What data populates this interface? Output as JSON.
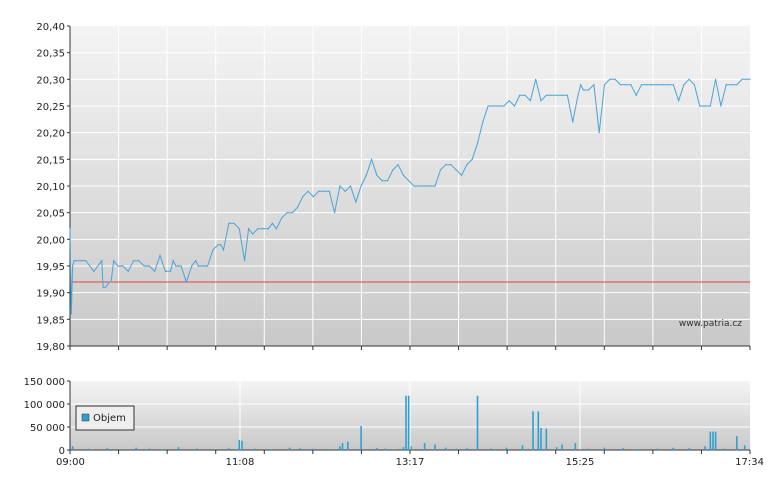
{
  "colors": {
    "background_top": "#f4f4f4",
    "background_bottom": "#c9c9c9",
    "grid": "#ffffff",
    "axis": "#333333",
    "price_line": "#4aa3d8",
    "reference_line": "#e04040",
    "volume_bar": "#2f9fd0",
    "legend_swatch": "#2f9fd0"
  },
  "chart_data": [
    {
      "type": "line",
      "title": "",
      "xlabel": "",
      "ylabel": "",
      "x_tick_labels": [
        "09:00",
        "11:08",
        "13:17",
        "15:25",
        "17:34"
      ],
      "ylim": [
        19.8,
        20.4
      ],
      "y_ticks": [
        19.8,
        19.85,
        19.9,
        19.95,
        20.0,
        20.05,
        20.1,
        20.15,
        20.2,
        20.25,
        20.3,
        20.35,
        20.4
      ],
      "y_tick_labels": [
        "19,80",
        "19,85",
        "19,90",
        "19,95",
        "20,00",
        "20,05",
        "20,10",
        "20,15",
        "20,20",
        "20,25",
        "20,30",
        "20,35",
        "20,40"
      ],
      "reference_value": 19.92,
      "watermark": "www.patria.cz",
      "grid": true,
      "series": [
        {
          "x": [
            "09:00",
            "09:01",
            "09:02",
            "09:03",
            "09:05",
            "09:08",
            "09:12",
            "09:18",
            "09:24",
            "09:25",
            "09:27",
            "09:30",
            "09:31",
            "09:33",
            "09:36",
            "09:40",
            "09:44",
            "09:48",
            "09:52",
            "09:56",
            "10:00",
            "10:04",
            "10:08",
            "10:12",
            "10:16",
            "10:18",
            "10:20",
            "10:24",
            "10:28",
            "10:32",
            "10:35",
            "10:37",
            "10:40",
            "10:44",
            "10:48",
            "10:52",
            "10:54",
            "10:56",
            "11:00",
            "11:04",
            "11:08",
            "11:12",
            "11:15",
            "11:18",
            "11:22",
            "11:26",
            "11:30",
            "11:33",
            "11:36",
            "11:40",
            "11:44",
            "11:48",
            "11:52",
            "11:56",
            "12:00",
            "12:04",
            "12:08",
            "12:12",
            "12:16",
            "12:20",
            "12:24",
            "12:28",
            "12:32",
            "12:36",
            "12:40",
            "12:44",
            "12:48",
            "12:52",
            "12:56",
            "13:00",
            "13:04",
            "13:08",
            "13:12",
            "13:16",
            "13:20",
            "13:24",
            "13:28",
            "13:32",
            "13:36",
            "13:40",
            "13:44",
            "13:48",
            "13:52",
            "13:56",
            "14:00",
            "14:04",
            "14:08",
            "14:12",
            "14:16",
            "14:20",
            "14:24",
            "14:28",
            "14:32",
            "14:36",
            "14:40",
            "14:44",
            "14:48",
            "14:52",
            "14:56",
            "15:00",
            "15:04",
            "15:08",
            "15:12",
            "15:16",
            "15:20",
            "15:24",
            "15:26",
            "15:28",
            "15:32",
            "15:36",
            "15:40",
            "15:44",
            "15:48",
            "15:52",
            "15:56",
            "16:00",
            "16:04",
            "16:08",
            "16:12",
            "16:16",
            "16:20",
            "16:24",
            "16:28",
            "16:32",
            "16:36",
            "16:40",
            "16:44",
            "16:48",
            "16:52",
            "16:56",
            "17:00",
            "17:04",
            "17:08",
            "17:12",
            "17:16",
            "17:20",
            "17:24",
            "17:28",
            "17:34"
          ],
          "y": [
            20.02,
            19.86,
            19.95,
            19.96,
            19.96,
            19.96,
            19.96,
            19.94,
            19.96,
            19.91,
            19.91,
            19.92,
            19.92,
            19.96,
            19.95,
            19.95,
            19.94,
            19.96,
            19.96,
            19.95,
            19.95,
            19.94,
            19.97,
            19.94,
            19.94,
            19.96,
            19.95,
            19.95,
            19.92,
            19.95,
            19.96,
            19.95,
            19.95,
            19.95,
            19.98,
            19.99,
            19.99,
            19.98,
            20.03,
            20.03,
            20.02,
            19.96,
            20.02,
            20.01,
            20.02,
            20.02,
            20.02,
            20.03,
            20.02,
            20.04,
            20.05,
            20.05,
            20.06,
            20.08,
            20.09,
            20.08,
            20.09,
            20.09,
            20.09,
            20.05,
            20.1,
            20.09,
            20.1,
            20.07,
            20.1,
            20.12,
            20.15,
            20.12,
            20.11,
            20.11,
            20.13,
            20.14,
            20.12,
            20.11,
            20.1,
            20.1,
            20.1,
            20.1,
            20.1,
            20.13,
            20.14,
            20.14,
            20.13,
            20.12,
            20.14,
            20.15,
            20.18,
            20.22,
            20.25,
            20.25,
            20.25,
            20.25,
            20.26,
            20.25,
            20.27,
            20.27,
            20.26,
            20.3,
            20.26,
            20.27,
            20.27,
            20.27,
            20.27,
            20.27,
            20.22,
            20.27,
            20.29,
            20.28,
            20.28,
            20.29,
            20.2,
            20.29,
            20.3,
            20.3,
            20.29,
            20.29,
            20.29,
            20.27,
            20.29,
            20.29,
            20.29,
            20.29,
            20.29,
            20.29,
            20.29,
            20.26,
            20.29,
            20.3,
            20.29,
            20.25,
            20.25,
            20.25,
            20.3,
            20.25,
            20.29,
            20.29,
            20.29,
            20.3,
            20.3
          ]
        }
      ]
    },
    {
      "type": "bar",
      "title": "",
      "xlabel": "",
      "ylabel": "",
      "x_tick_labels": [
        "09:00",
        "11:08",
        "13:17",
        "15:25",
        "17:34"
      ],
      "ylim": [
        0,
        150000
      ],
      "y_ticks": [
        0,
        50000,
        100000,
        150000
      ],
      "y_tick_labels": [
        "0",
        "50 000",
        "100 000",
        "150 000"
      ],
      "legend": {
        "label": "Objem",
        "position": "top-left"
      },
      "grid": true,
      "series": [
        {
          "name": "Objem",
          "x": [
            "09:02",
            "09:14",
            "09:28",
            "09:40",
            "09:50",
            "10:00",
            "10:10",
            "10:22",
            "10:36",
            "10:48",
            "11:00",
            "11:06",
            "11:08",
            "11:10",
            "11:20",
            "11:32",
            "11:46",
            "11:54",
            "12:04",
            "12:16",
            "12:24",
            "12:26",
            "12:30",
            "12:40",
            "12:52",
            "12:58",
            "13:04",
            "13:12",
            "13:14",
            "13:16",
            "13:18",
            "13:28",
            "13:36",
            "13:44",
            "13:52",
            "14:00",
            "14:08",
            "14:18",
            "14:30",
            "14:42",
            "14:50",
            "14:54",
            "14:56",
            "15:00",
            "15:08",
            "15:12",
            "15:22",
            "15:32",
            "15:44",
            "15:58",
            "16:10",
            "16:24",
            "16:36",
            "16:48",
            "17:00",
            "17:04",
            "17:06",
            "17:08",
            "17:14",
            "17:24",
            "17:30"
          ],
          "values": [
            8000,
            3000,
            4000,
            2000,
            5000,
            3000,
            2000,
            6000,
            3000,
            2000,
            4000,
            2000,
            22000,
            20000,
            3000,
            2000,
            5000,
            4000,
            3000,
            2000,
            8000,
            15000,
            18000,
            52000,
            4000,
            3000,
            2000,
            6000,
            118000,
            118000,
            8000,
            15000,
            12000,
            5000,
            3000,
            4000,
            118000,
            3000,
            5000,
            10000,
            84000,
            84000,
            48000,
            46000,
            6000,
            12000,
            15000,
            3000,
            5000,
            4000,
            2000,
            3000,
            5000,
            4000,
            8000,
            40000,
            40000,
            40000,
            3000,
            30000,
            10000
          ]
        }
      ]
    }
  ]
}
